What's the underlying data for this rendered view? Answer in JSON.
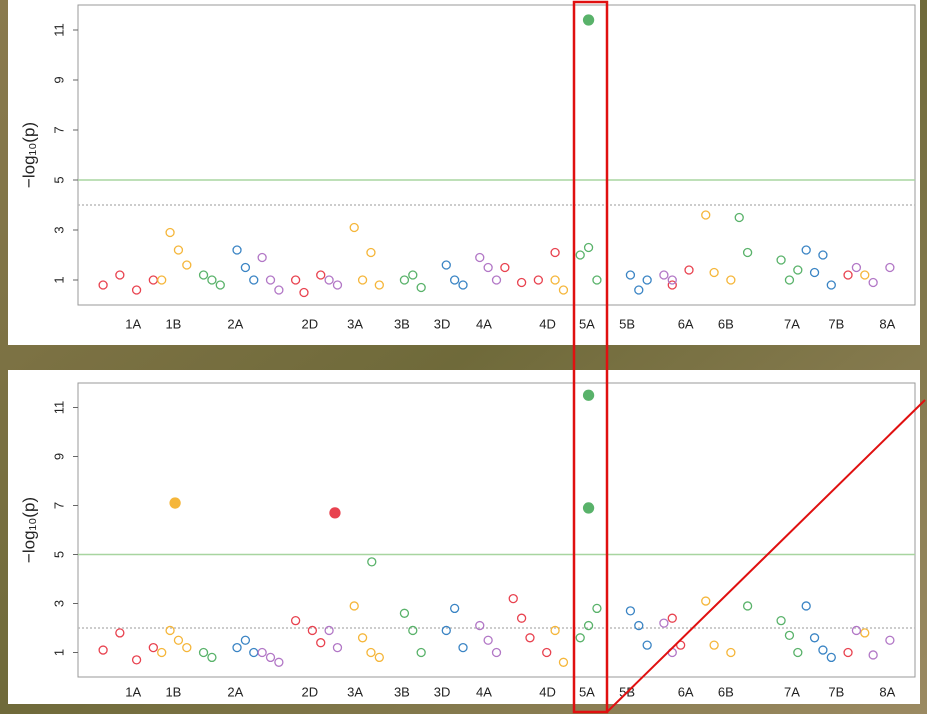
{
  "chart_data": [
    {
      "type": "manhattan",
      "ylabel": "−log₁₀(p)",
      "xlim": [
        0,
        100
      ],
      "ylim": [
        0,
        12
      ],
      "xticks": [
        {
          "value": 6.6,
          "label": "1A"
        },
        {
          "value": 11.4,
          "label": "1B"
        },
        {
          "value": 18.8,
          "label": "2A"
        },
        {
          "value": 27.7,
          "label": "2D"
        },
        {
          "value": 33.1,
          "label": "3A"
        },
        {
          "value": 38.7,
          "label": "3B"
        },
        {
          "value": 43.5,
          "label": "3D"
        },
        {
          "value": 48.5,
          "label": "4A"
        },
        {
          "value": 56.1,
          "label": "4D"
        },
        {
          "value": 60.8,
          "label": "5A"
        },
        {
          "value": 65.6,
          "label": "5B"
        },
        {
          "value": 72.6,
          "label": "6A"
        },
        {
          "value": 77.4,
          "label": "6B"
        },
        {
          "value": 85.3,
          "label": "7A"
        },
        {
          "value": 90.6,
          "label": "7B"
        },
        {
          "value": 96.7,
          "label": "8A"
        }
      ],
      "yticks": [
        1,
        3,
        5,
        7,
        9,
        11
      ],
      "thresholds": [
        {
          "value": 5,
          "style": "solid",
          "color": "#a8d5a0"
        },
        {
          "value": 4,
          "style": "dotted",
          "color": "#bbbbbb"
        }
      ],
      "series": [
        {
          "color": "#e8424f",
          "marker": "hollow",
          "x": [
            3,
            5,
            7,
            9,
            26,
            27,
            29,
            51,
            53,
            55,
            57,
            71,
            73,
            92
          ],
          "values": [
            0.8,
            1.2,
            0.6,
            1.0,
            1.0,
            0.5,
            1.2,
            1.5,
            0.9,
            1.0,
            2.1,
            0.8,
            1.4,
            1.2
          ]
        },
        {
          "color": "#f5b63a",
          "marker": "hollow",
          "x": [
            10,
            11,
            12,
            13,
            33,
            34,
            35,
            36,
            57,
            58,
            75,
            76,
            78,
            94
          ],
          "values": [
            1.0,
            2.9,
            2.2,
            1.6,
            3.1,
            1.0,
            2.1,
            0.8,
            1.0,
            0.6,
            3.6,
            1.3,
            1.0,
            1.2
          ]
        },
        {
          "color": "#59b26a",
          "marker": "hollow",
          "x": [
            15,
            16,
            17,
            39,
            40,
            41,
            60,
            61,
            62,
            79,
            80,
            84,
            85,
            86
          ],
          "values": [
            1.2,
            1.0,
            0.8,
            1.0,
            1.2,
            0.7,
            2.0,
            2.3,
            1.0,
            3.5,
            2.1,
            1.8,
            1.0,
            1.4
          ]
        },
        {
          "color": "#3a84c4",
          "marker": "hollow",
          "x": [
            19,
            20,
            21,
            44,
            45,
            46,
            66,
            67,
            68,
            87,
            88,
            89,
            90
          ],
          "values": [
            2.2,
            1.5,
            1.0,
            1.6,
            1.0,
            0.8,
            1.2,
            0.6,
            1.0,
            2.2,
            1.3,
            2.0,
            0.8
          ]
        },
        {
          "color": "#b277c6",
          "marker": "hollow",
          "x": [
            22,
            23,
            24,
            30,
            31,
            48,
            49,
            50,
            70,
            71,
            93,
            95,
            97
          ],
          "values": [
            1.9,
            1.0,
            0.6,
            1.0,
            0.8,
            1.9,
            1.5,
            1.0,
            1.2,
            1.0,
            1.5,
            0.9,
            1.5
          ]
        },
        {
          "color": "#59b26a",
          "marker": "filled",
          "x": [
            61
          ],
          "values": [
            11.4
          ]
        }
      ]
    },
    {
      "type": "manhattan",
      "ylabel": "−log₁₀(p)",
      "xlim": [
        0,
        100
      ],
      "ylim": [
        0,
        12
      ],
      "xticks": [
        {
          "value": 6.6,
          "label": "1A"
        },
        {
          "value": 11.4,
          "label": "1B"
        },
        {
          "value": 18.8,
          "label": "2A"
        },
        {
          "value": 27.7,
          "label": "2D"
        },
        {
          "value": 33.1,
          "label": "3A"
        },
        {
          "value": 38.7,
          "label": "3B"
        },
        {
          "value": 43.5,
          "label": "3D"
        },
        {
          "value": 48.5,
          "label": "4A"
        },
        {
          "value": 56.1,
          "label": "4D"
        },
        {
          "value": 60.8,
          "label": "5A"
        },
        {
          "value": 65.6,
          "label": "5B"
        },
        {
          "value": 72.6,
          "label": "6A"
        },
        {
          "value": 77.4,
          "label": "6B"
        },
        {
          "value": 85.3,
          "label": "7A"
        },
        {
          "value": 90.6,
          "label": "7B"
        },
        {
          "value": 96.7,
          "label": "8A"
        }
      ],
      "yticks": [
        1,
        3,
        5,
        7,
        9,
        11
      ],
      "thresholds": [
        {
          "value": 5,
          "style": "solid",
          "color": "#a8d5a0"
        },
        {
          "value": 2,
          "style": "dotted",
          "color": "#bbbbbb"
        }
      ],
      "series": [
        {
          "color": "#e8424f",
          "marker": "hollow",
          "x": [
            3,
            5,
            7,
            9,
            26,
            28,
            29,
            52,
            53,
            54,
            56,
            71,
            72,
            92
          ],
          "values": [
            1.1,
            1.8,
            0.7,
            1.2,
            2.3,
            1.9,
            1.4,
            3.2,
            2.4,
            1.6,
            1.0,
            2.4,
            1.3,
            1.0
          ]
        },
        {
          "color": "#f5b63a",
          "marker": "hollow",
          "x": [
            10,
            11,
            12,
            13,
            33,
            34,
            35,
            36,
            57,
            58,
            75,
            76,
            78,
            94
          ],
          "values": [
            1.0,
            1.9,
            1.5,
            1.2,
            2.9,
            1.6,
            1.0,
            0.8,
            1.9,
            0.6,
            3.1,
            1.3,
            1.0,
            1.8
          ]
        },
        {
          "color": "#59b26a",
          "marker": "hollow",
          "x": [
            15,
            16,
            35.1,
            39,
            40,
            41,
            60,
            61,
            62,
            80,
            84,
            85,
            86
          ],
          "values": [
            1.0,
            0.8,
            4.7,
            2.6,
            1.9,
            1.0,
            1.6,
            2.1,
            2.8,
            2.9,
            2.3,
            1.7,
            1.0
          ]
        },
        {
          "color": "#3a84c4",
          "marker": "hollow",
          "x": [
            19,
            20,
            21,
            44,
            45,
            46,
            66,
            67,
            68,
            87,
            88,
            89,
            90
          ],
          "values": [
            1.2,
            1.5,
            1.0,
            1.9,
            2.8,
            1.2,
            2.7,
            2.1,
            1.3,
            2.9,
            1.6,
            1.1,
            0.8
          ]
        },
        {
          "color": "#b277c6",
          "marker": "hollow",
          "x": [
            22,
            23,
            24,
            30,
            31,
            48,
            49,
            50,
            70,
            71,
            93,
            95,
            97
          ],
          "values": [
            1.0,
            0.8,
            0.6,
            1.9,
            1.2,
            2.1,
            1.5,
            1.0,
            2.2,
            1.0,
            1.9,
            0.9,
            1.5
          ]
        },
        {
          "color": "#f5b63a",
          "marker": "filled",
          "x": [
            11.6
          ],
          "values": [
            7.1
          ]
        },
        {
          "color": "#e8424f",
          "marker": "filled",
          "x": [
            30.7
          ],
          "values": [
            6.7
          ]
        },
        {
          "color": "#59b26a",
          "marker": "filled",
          "x": [
            61,
            61
          ],
          "values": [
            11.5,
            6.9
          ]
        }
      ]
    }
  ]
}
